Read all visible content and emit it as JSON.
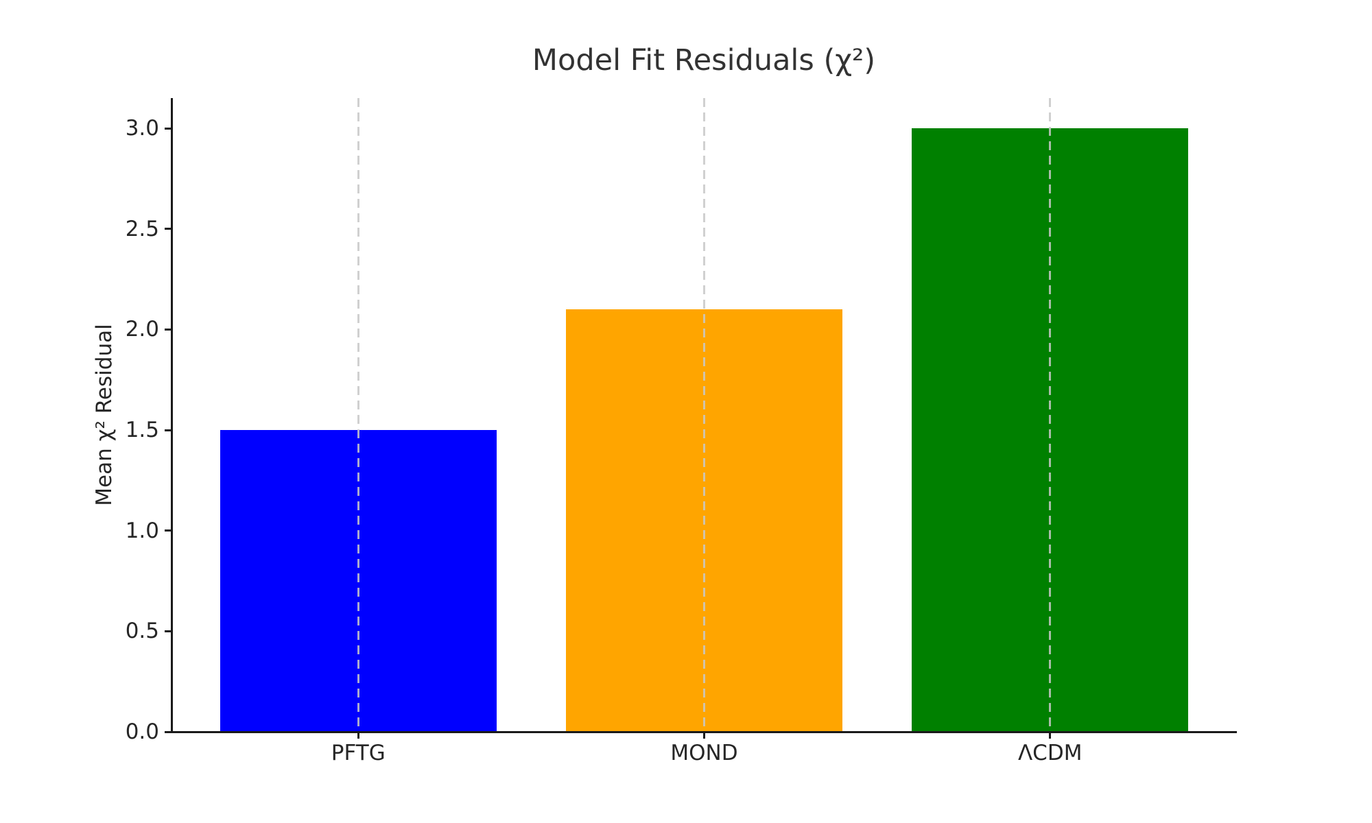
{
  "chart_data": {
    "type": "bar",
    "title": "Model Fit Residuals (χ²)",
    "xlabel": "",
    "ylabel": "Mean χ² Residual",
    "categories": [
      "PFTG",
      "MOND",
      "ΛCDM"
    ],
    "values": [
      1.5,
      2.1,
      3.0
    ],
    "bar_colors": [
      "#0000ff",
      "#ffa500",
      "#008000"
    ],
    "yticks": [
      0.0,
      0.5,
      1.0,
      1.5,
      2.0,
      2.5,
      3.0
    ],
    "ytick_labels": [
      "0.0",
      "0.5",
      "1.0",
      "1.5",
      "2.0",
      "2.5",
      "3.0"
    ],
    "ylim": [
      0,
      3.15
    ],
    "bar_width_fraction": 0.8,
    "grid": "vertical-dashed-at-bar-centers-above-bars",
    "gridline_color": "#c8c8c8",
    "spine_color": "#1a1a1a",
    "text_color": "#262626",
    "title_color": "#333333",
    "legend": "none",
    "spines_visible": [
      "left",
      "bottom"
    ]
  }
}
